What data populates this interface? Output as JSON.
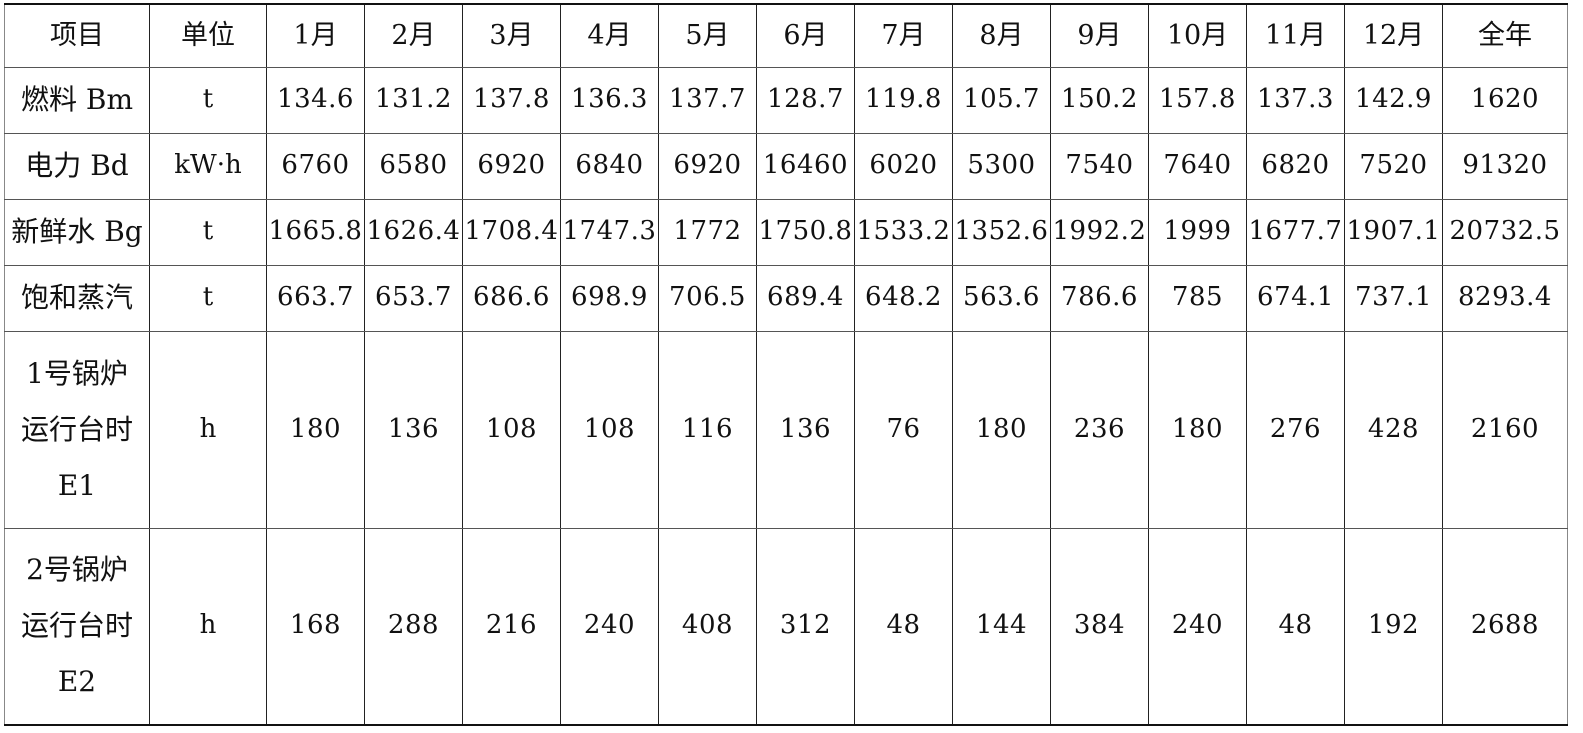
{
  "header": [
    "项目",
    "单位",
    "1月",
    "2月",
    "3月",
    "4月",
    "5月",
    "6月",
    "7月",
    "8月",
    "9月",
    "10月",
    "11月",
    "12月",
    "全年"
  ],
  "rows": [
    {
      "label_lines": [
        "燃料 Bm"
      ],
      "unit": "t",
      "values": [
        "134.6",
        "131.2",
        "137.8",
        "136.3",
        "137.7",
        "128.7",
        "119.8",
        "105.7",
        "150.2",
        "157.8",
        "137.3",
        "142.9",
        "1620"
      ]
    },
    {
      "label_lines": [
        "电力 Bd"
      ],
      "unit": "kW·h",
      "values": [
        "6760",
        "6580",
        "6920",
        "6840",
        "6920",
        "16460",
        "6020",
        "5300",
        "7540",
        "7640",
        "6820",
        "7520",
        "91320"
      ]
    },
    {
      "label_lines": [
        "新鲜水 Bg"
      ],
      "unit": "t",
      "values": [
        "1665.8",
        "1626.4",
        "1708.4",
        "1747.3",
        "1772",
        "1750.8",
        "1533.2",
        "1352.6",
        "1992.2",
        "1999",
        "1677.7",
        "1907.1",
        "20732.5"
      ]
    },
    {
      "label_lines": [
        "饱和蒸汽"
      ],
      "unit": "t",
      "values": [
        "663.7",
        "653.7",
        "686.6",
        "698.9",
        "706.5",
        "689.4",
        "648.2",
        "563.6",
        "786.6",
        "785",
        "674.1",
        "737.1",
        "8293.4"
      ]
    },
    {
      "label_lines": [
        "1号锅炉",
        "运行台时",
        "E1"
      ],
      "unit": "h",
      "values": [
        "180",
        "136",
        "108",
        "108",
        "116",
        "136",
        "76",
        "180",
        "236",
        "180",
        "276",
        "428",
        "2160"
      ]
    },
    {
      "label_lines": [
        "2号锅炉",
        "运行台时",
        "E2"
      ],
      "unit": "h",
      "values": [
        "168",
        "288",
        "216",
        "240",
        "408",
        "312",
        "48",
        "144",
        "384",
        "240",
        "48",
        "192",
        "2688"
      ]
    }
  ]
}
